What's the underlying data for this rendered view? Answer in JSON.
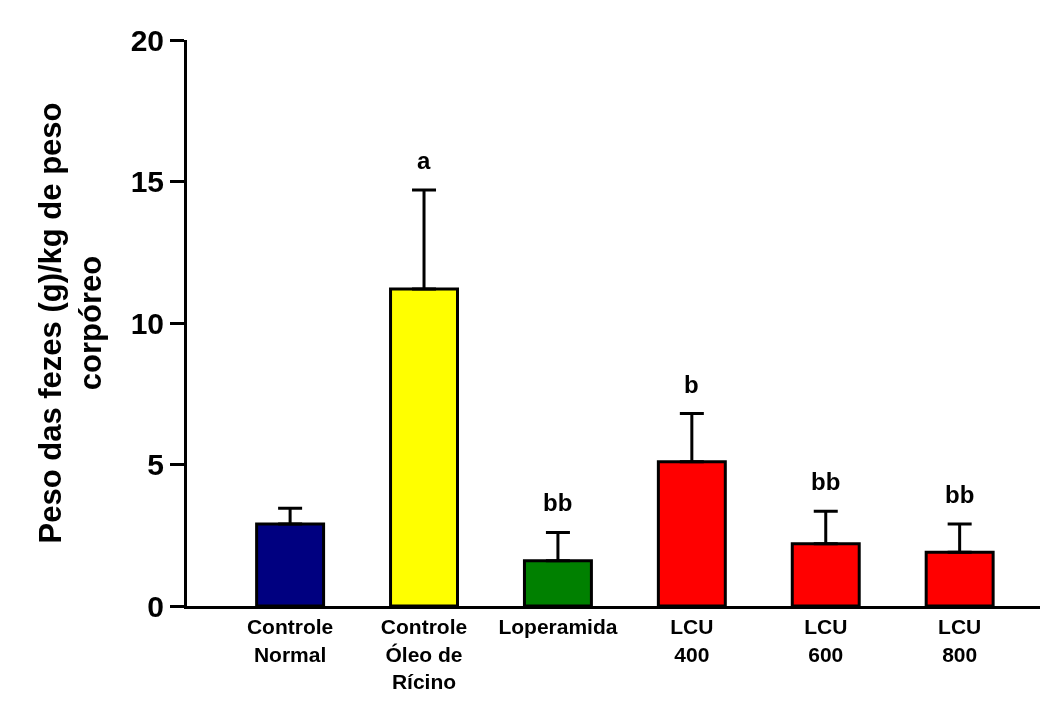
{
  "chart_data": {
    "type": "bar",
    "ylabel": "Peso das fezes (g)/kg de peso\ncorpóreo",
    "categories": [
      "Controle\nNormal",
      "Controle\nÓleo de\nRícino",
      "Loperamida",
      "LCU\n400",
      "LCU\n600",
      "LCU\n800"
    ],
    "values": [
      2.9,
      11.2,
      1.6,
      5.1,
      2.2,
      1.9
    ],
    "colors": [
      "#000080",
      "#ffff00",
      "#008000",
      "#ff0000",
      "#ff0000",
      "#ff0000"
    ],
    "errors": [
      [
        2.9,
        3.45
      ],
      [
        11.2,
        14.7
      ],
      [
        1.6,
        2.6
      ],
      [
        5.1,
        6.8
      ],
      [
        2.2,
        3.35
      ],
      [
        1.9,
        2.9
      ]
    ],
    "ylim": [
      0,
      20
    ],
    "yticks": [
      0,
      5,
      10,
      15,
      20
    ],
    "legend": false,
    "annotations": [
      {
        "text": "a",
        "x": "Controle\nÓleo de\nRícino",
        "y": 14.7
      },
      {
        "text": "bb",
        "x": "Loperamida",
        "y": 2.6
      },
      {
        "text": "b",
        "x": "LCU\n400",
        "y": 6.8
      },
      {
        "text": "bb",
        "x": "LCU\n600",
        "y": 3.35
      },
      {
        "text": "bb",
        "x": "LCU\n800",
        "y": 2.9
      }
    ]
  }
}
